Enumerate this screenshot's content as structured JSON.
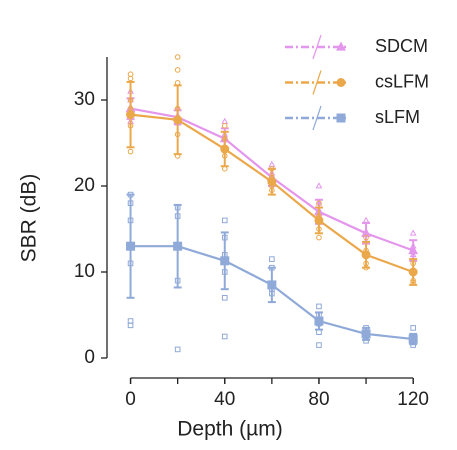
{
  "chart_data": {
    "type": "line",
    "xlabel": "Depth (µm)",
    "ylabel": "SBR (dB)",
    "xlim": [
      -10,
      128
    ],
    "ylim": [
      0,
      35
    ],
    "xticks": [
      0,
      40,
      80,
      120
    ],
    "yticks": [
      0,
      10,
      20,
      30
    ],
    "x": [
      0,
      20,
      40,
      60,
      80,
      100,
      120
    ],
    "legend": "upper right",
    "series": [
      {
        "name": "SDCM",
        "color": "#e496ec",
        "marker": "triangle",
        "values": [
          29,
          28,
          25.5,
          21,
          17,
          14.5,
          12.5
        ],
        "errors": [
          1.2,
          0.8,
          1.2,
          1,
          1.4,
          1.2,
          1.2
        ],
        "points": {
          "x": [
            0,
            0,
            0,
            0,
            20,
            20,
            20,
            40,
            40,
            40,
            60,
            60,
            60,
            80,
            80,
            80,
            100,
            100,
            100,
            120,
            120,
            120
          ],
          "y": [
            31,
            30,
            28.5,
            27.5,
            29,
            28,
            27.3,
            27.5,
            26,
            24.5,
            22.5,
            21.5,
            20.5,
            20,
            18,
            16.5,
            16,
            14.5,
            13.5,
            14.5,
            13,
            12
          ]
        }
      },
      {
        "name": "csLFM",
        "color": "#eba84a",
        "marker": "circle",
        "values": [
          28.3,
          27.7,
          24.3,
          20.5,
          16,
          12,
          10
        ],
        "errors": [
          3.8,
          4,
          2,
          1.5,
          1.5,
          1.5,
          1.5
        ],
        "points": {
          "x": [
            0,
            0,
            0,
            0,
            0,
            0,
            20,
            20,
            20,
            20,
            20,
            20,
            40,
            40,
            40,
            40,
            60,
            60,
            60,
            60,
            80,
            80,
            80,
            80,
            100,
            100,
            100,
            100,
            120,
            120,
            120,
            120
          ],
          "y": [
            33,
            32.5,
            30,
            29,
            27,
            24,
            35,
            33.5,
            32,
            29,
            26,
            23.5,
            27,
            25.5,
            23.5,
            22,
            22,
            21,
            20,
            19.5,
            18,
            16.5,
            15,
            14,
            14,
            12.5,
            11,
            10.5,
            11,
            10,
            9,
            8.8
          ]
        }
      },
      {
        "name": "sLFM",
        "color": "#8fa9d8",
        "marker": "square",
        "values": [
          13,
          13,
          11.3,
          8.5,
          4.3,
          2.8,
          2.2
        ],
        "errors": [
          6,
          4.8,
          3.3,
          2,
          1,
          0.7,
          0.6
        ],
        "points": {
          "x": [
            0,
            0,
            0,
            0,
            0,
            0,
            0,
            20,
            20,
            20,
            20,
            20,
            40,
            40,
            40,
            40,
            40,
            40,
            60,
            60,
            60,
            60,
            80,
            80,
            80,
            80,
            80,
            100,
            100,
            100,
            100,
            120,
            120,
            120,
            120
          ],
          "y": [
            19,
            18,
            16,
            13,
            11,
            4.3,
            3.8,
            17.5,
            16.5,
            13,
            9,
            1,
            16,
            14,
            12,
            10,
            7,
            2.5,
            11.5,
            10.5,
            8,
            7.5,
            6,
            5,
            4,
            3,
            1.5,
            3.5,
            3,
            2.5,
            2,
            3.5,
            2.5,
            2,
            1.5
          ]
        }
      }
    ]
  }
}
